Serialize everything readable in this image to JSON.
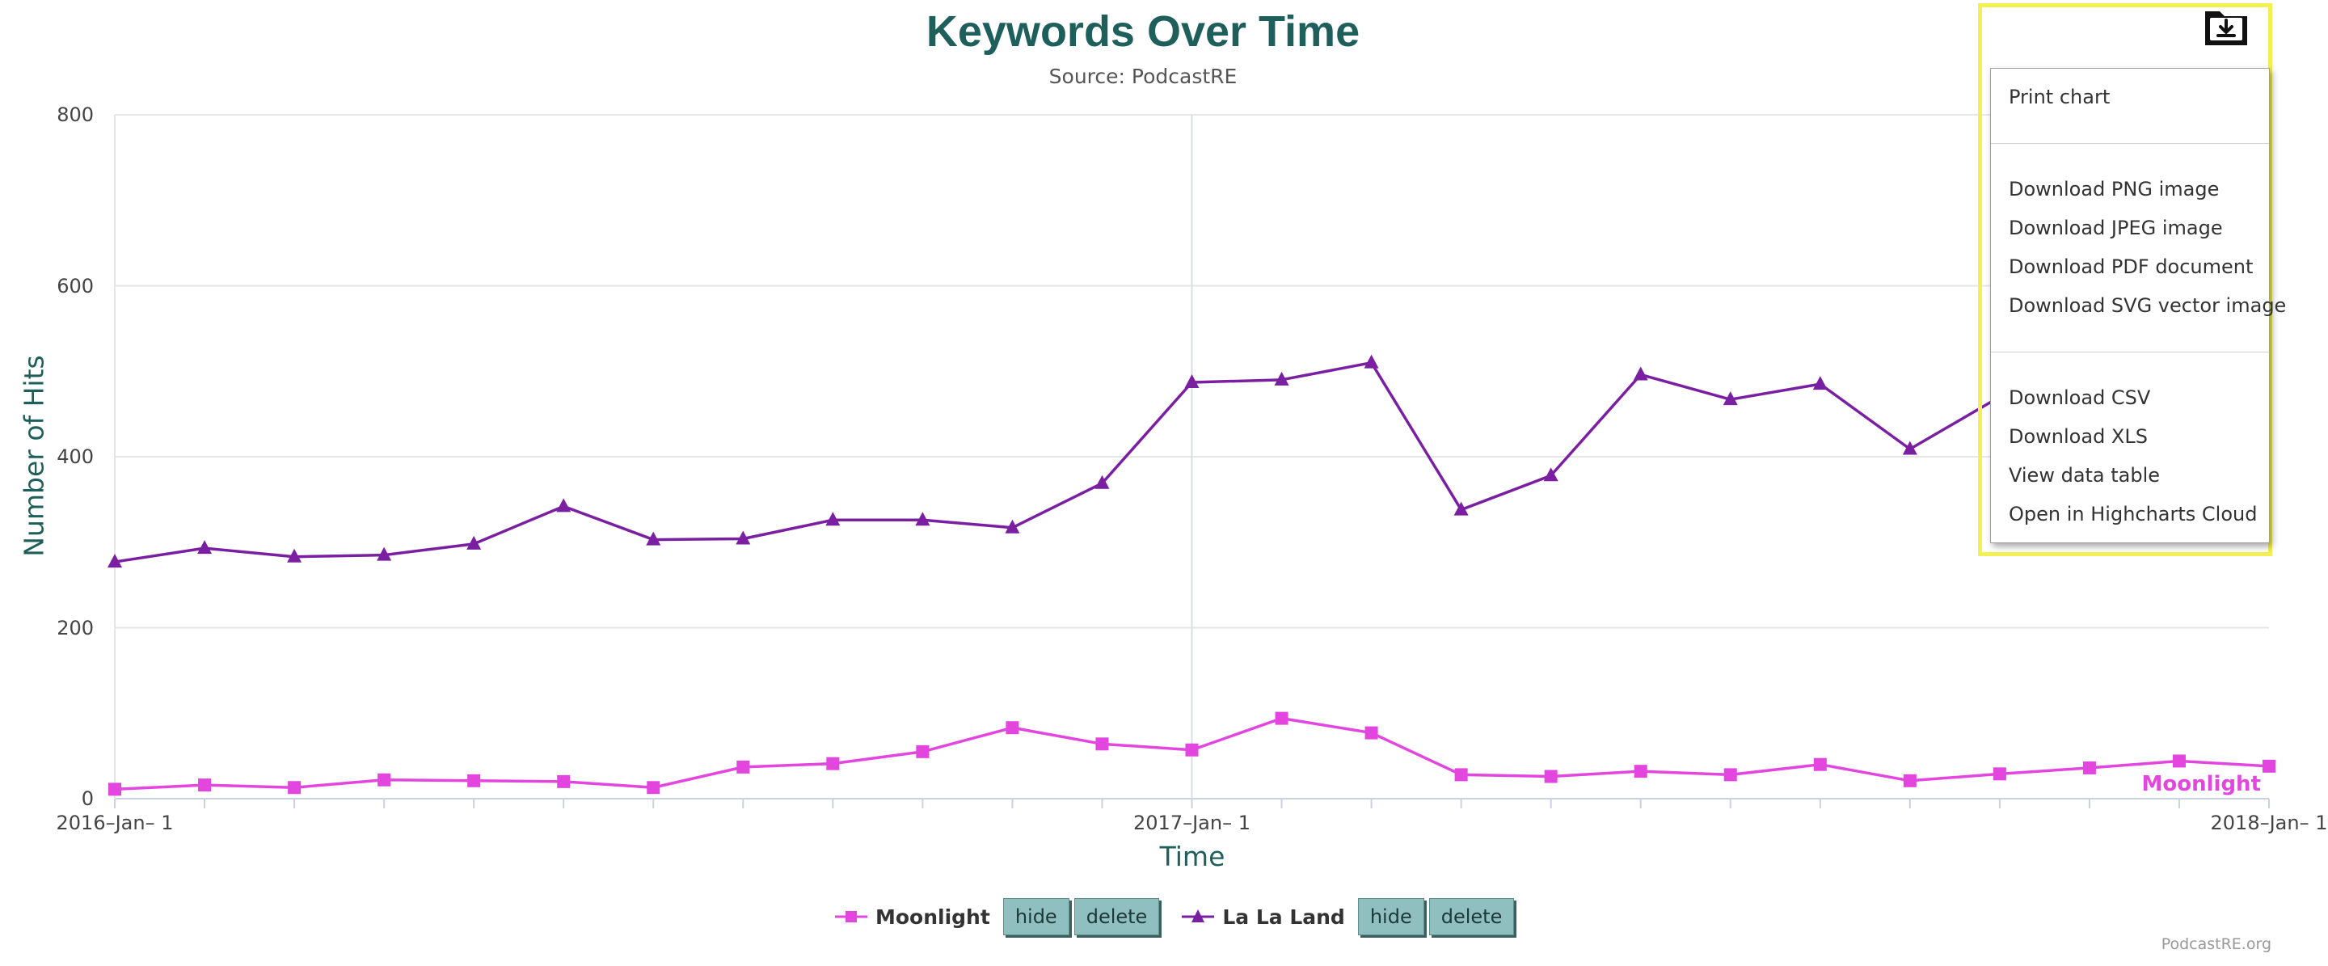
{
  "chart_data": {
    "type": "line",
    "title": "Keywords Over Time",
    "subtitle": "Source: PodcastRE",
    "xlabel": "Time",
    "ylabel": "Number of Hits",
    "ylim": [
      0,
      800
    ],
    "yticks": [
      "0",
      "200",
      "400",
      "600",
      "800"
    ],
    "xticks": [
      "2016–Jan– 1",
      "2017–Jan– 1",
      "2018–Jan– 1"
    ],
    "x": [
      "2016-01",
      "2016-02",
      "2016-03",
      "2016-04",
      "2016-05",
      "2016-06",
      "2016-07",
      "2016-08",
      "2016-09",
      "2016-10",
      "2016-11",
      "2016-12",
      "2017-01",
      "2017-02",
      "2017-03",
      "2017-04",
      "2017-05",
      "2017-06",
      "2017-07",
      "2017-08",
      "2017-09",
      "2017-10",
      "2017-11",
      "2017-12",
      "2018-01"
    ],
    "grid": true,
    "series": [
      {
        "name": "Moonlight",
        "color": "#e346de",
        "marker": "square",
        "values": [
          11,
          16,
          13,
          22,
          21,
          20,
          13,
          37,
          41,
          55,
          83,
          64,
          57,
          94,
          77,
          28,
          26,
          32,
          28,
          40,
          21,
          29,
          36,
          44,
          38
        ]
      },
      {
        "name": "La La Land",
        "color": "#7a1fa2",
        "marker": "triangle",
        "values": [
          277,
          293,
          283,
          285,
          298,
          342,
          303,
          304,
          326,
          326,
          317,
          369,
          487,
          490,
          510,
          338,
          378,
          496,
          467,
          485,
          409,
          470,
          null,
          null,
          null
        ]
      }
    ],
    "end_label": "Moonlight",
    "credits": "PodcastRE.org"
  },
  "legend": {
    "hide_label": "hide",
    "delete_label": "delete"
  },
  "export_menu": {
    "button_icon": "download-icon",
    "items": [
      "Print chart",
      "Download PNG image",
      "Download JPEG image",
      "Download PDF document",
      "Download SVG vector image",
      "Download CSV",
      "Download XLS",
      "View data table",
      "Open in Highcharts Cloud"
    ]
  }
}
